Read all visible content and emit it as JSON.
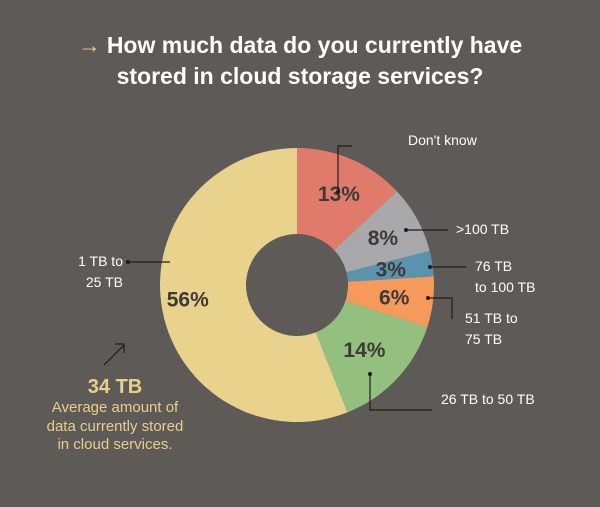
{
  "title": {
    "line1": "How much data do you currently have",
    "line2": "stored in cloud storage services?",
    "bullet": "→"
  },
  "chart_data": {
    "type": "pie",
    "variant": "donut",
    "title": "How much data do you currently have stored in cloud storage services?",
    "slices": [
      {
        "label": "Don't know",
        "value": 13,
        "display": "13%",
        "color": "#e07b6c"
      },
      {
        "label": ">100 TB",
        "value": 8,
        "display": "8%",
        "color": "#a9a9ab"
      },
      {
        "label": "76 TB to 100 TB",
        "value": 3,
        "display": "3%",
        "color": "#5b93ad"
      },
      {
        "label": "51 TB to 75 TB",
        "value": 6,
        "display": "6%",
        "color": "#f59a5b"
      },
      {
        "label": "26 TB to 50 TB",
        "value": 14,
        "display": "14%",
        "color": "#93c07e"
      },
      {
        "label": "1 TB to 25 TB",
        "value": 56,
        "display": "56%",
        "color": "#e8d28c"
      }
    ]
  },
  "callout": {
    "value": "34 TB",
    "description": "Average amount of data currently stored in cloud services."
  },
  "colors": {
    "background": "#5e5a57",
    "accent": "#e8d08a",
    "percent_text": "#3d3a38"
  }
}
